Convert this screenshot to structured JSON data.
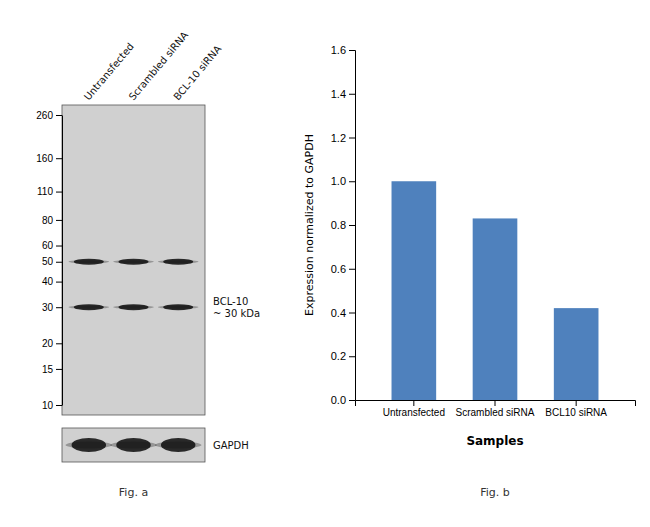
{
  "chart_data": [
    {
      "type": "blot",
      "categories": [
        "Untransfected",
        "Scrambled siRNA",
        "BCL-10 siRNA"
      ],
      "log": "y",
      "ylim": [
        10,
        260
      ],
      "yticks": [
        260,
        160,
        110,
        80,
        60,
        50,
        40,
        30,
        20,
        15,
        10
      ],
      "color": "#111111",
      "annotations": [
        "BCL-10\n~ 30 kDa",
        "GAPDH",
        "Fig. a"
      ]
    },
    {
      "type": "bar",
      "categories": [
        "Untransfected",
        "Scrambled siRNA",
        "BCL10 siRNA"
      ],
      "values": [
        1.0,
        0.83,
        0.42
      ],
      "color": "#4f81bd",
      "xlabel": "Samples",
      "ylabel": "Expression normalized to GAPDH",
      "ylim": [
        0,
        1.6
      ],
      "yticks": [
        {
          "value": 0,
          "label": "0.0"
        },
        0.2,
        0.4,
        0.6,
        0.8,
        {
          "value": 1.0,
          "label": "1.0"
        },
        1.2,
        1.4,
        1.6
      ],
      "grid": false,
      "annotations": [
        "Fig. b"
      ]
    }
  ]
}
